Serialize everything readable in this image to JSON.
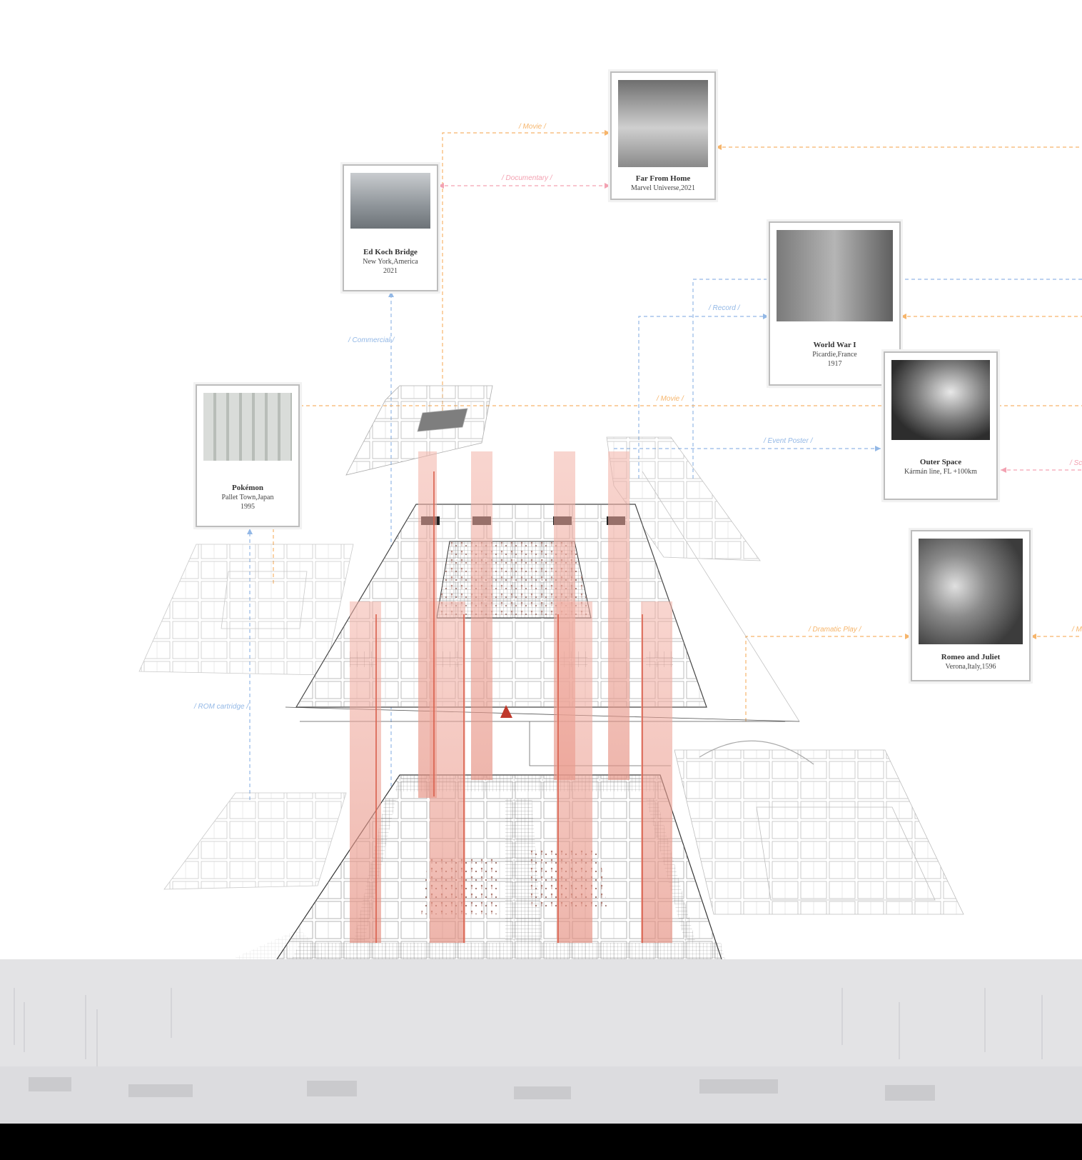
{
  "cards": [
    {
      "id": "far-from-home",
      "title": "Far From Home",
      "lines": [
        "Marvel Universe,2021"
      ]
    },
    {
      "id": "ed-koch",
      "title": "Ed Koch Bridge",
      "lines": [
        "New York,America",
        "2021"
      ]
    },
    {
      "id": "world-war",
      "title": "World War I",
      "lines": [
        "Picardie,France",
        "1917"
      ]
    },
    {
      "id": "outer-space",
      "title": "Outer Space",
      "lines": [
        "Kármán line, FL +100km"
      ]
    },
    {
      "id": "pokemon",
      "title": "Pokémon",
      "lines": [
        "Pallet Town,Japan",
        "1995"
      ]
    },
    {
      "id": "romeo",
      "title": "Romeo and Juliet",
      "lines": [
        "Verona,Italy,1596"
      ]
    }
  ],
  "links": [
    {
      "id": "movie-top",
      "label": "/ Movie /",
      "color": "#f6b56b"
    },
    {
      "id": "documentary",
      "label": "/ Documentary /",
      "color": "#f3a2b2"
    },
    {
      "id": "commercial",
      "label": "/ Commercial /",
      "color": "#93b8e6"
    },
    {
      "id": "record",
      "label": "/ Record /",
      "color": "#93b8e6"
    },
    {
      "id": "movie-mid",
      "label": "/ Movie /",
      "color": "#f6b56b"
    },
    {
      "id": "event-poster",
      "label": "/ Event Poster /",
      "color": "#93b8e6"
    },
    {
      "id": "dramatic-play",
      "label": "/ Dramatic Play /",
      "color": "#f6b56b"
    },
    {
      "id": "rom-cartridge",
      "label": "/ ROM cartridge /",
      "color": "#93b8e6"
    },
    {
      "id": "edge-sc",
      "label": "/ Sc",
      "color": "#f3a2b2"
    },
    {
      "id": "edge-m",
      "label": "/ M",
      "color": "#f6b56b"
    }
  ],
  "palette": {
    "accent": "#c0392b",
    "salmon": "#eea89a",
    "line": "#7a7a7a",
    "ground": "#e3e3e5"
  }
}
